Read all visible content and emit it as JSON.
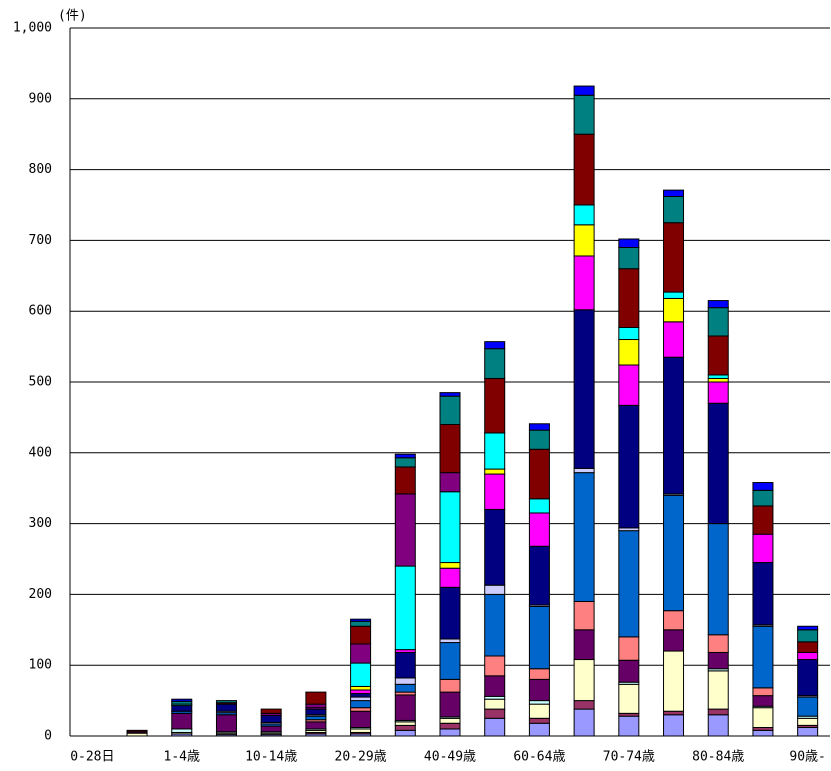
{
  "chart_data": {
    "type": "stacked_bar",
    "y_unit": "(件)",
    "categories": [
      "0-28日",
      null,
      "1-4歳",
      null,
      "10-14歳",
      null,
      "20-29歳",
      null,
      "40-49歳",
      null,
      "60-64歳",
      null,
      "70-74歳",
      null,
      "80-84歳",
      null,
      "90歳-"
    ],
    "ylim": [
      0,
      1000
    ],
    "yticks": [
      0,
      100,
      200,
      300,
      400,
      500,
      600,
      700,
      800,
      900,
      {
        "value": 1000,
        "label": "1,000"
      }
    ],
    "grid": true,
    "series": [
      {
        "color": "#9999ff",
        "values": [
          0,
          0,
          3,
          2,
          2,
          3,
          3,
          8,
          10,
          25,
          18,
          38,
          28,
          30,
          30,
          8,
          12
        ]
      },
      {
        "color": "#993366",
        "values": [
          0,
          0,
          0,
          0,
          0,
          2,
          2,
          7,
          8,
          13,
          7,
          12,
          4,
          5,
          8,
          4,
          3
        ]
      },
      {
        "color": "#ffffcc",
        "values": [
          0,
          4,
          2,
          2,
          2,
          3,
          5,
          5,
          7,
          14,
          20,
          58,
          41,
          85,
          54,
          28,
          10
        ]
      },
      {
        "color": "#ccffff",
        "values": [
          0,
          0,
          5,
          2,
          2,
          2,
          2,
          2,
          2,
          4,
          5,
          0,
          3,
          0,
          3,
          2,
          3
        ]
      },
      {
        "color": "#660066",
        "values": [
          0,
          2,
          22,
          24,
          8,
          10,
          23,
          36,
          35,
          29,
          30,
          42,
          31,
          30,
          23,
          15,
          0
        ]
      },
      {
        "color": "#ff8080",
        "values": [
          0,
          0,
          0,
          0,
          0,
          3,
          5,
          4,
          18,
          28,
          15,
          40,
          33,
          27,
          25,
          11,
          0
        ]
      },
      {
        "color": "#0066cc",
        "values": [
          0,
          0,
          3,
          3,
          3,
          5,
          10,
          11,
          52,
          87,
          88,
          182,
          150,
          163,
          157,
          87,
          27
        ]
      },
      {
        "color": "#ccccff",
        "values": [
          0,
          0,
          0,
          2,
          2,
          2,
          5,
          9,
          5,
          13,
          2,
          6,
          4,
          2,
          0,
          2,
          2
        ]
      },
      {
        "color": "#000080",
        "values": [
          0,
          0,
          8,
          10,
          10,
          8,
          5,
          36,
          73,
          107,
          83,
          224,
          173,
          193,
          170,
          88,
          51
        ]
      },
      {
        "color": "#ff00ff",
        "values": [
          0,
          0,
          0,
          0,
          0,
          2,
          5,
          4,
          27,
          50,
          47,
          76,
          57,
          50,
          30,
          40,
          10
        ]
      },
      {
        "color": "#ffff00",
        "values": [
          0,
          0,
          0,
          0,
          0,
          0,
          5,
          0,
          8,
          7,
          0,
          44,
          36,
          33,
          5,
          0,
          0
        ]
      },
      {
        "color": "#00ffff",
        "values": [
          0,
          0,
          2,
          0,
          0,
          0,
          33,
          118,
          100,
          51,
          20,
          28,
          17,
          9,
          5,
          0,
          0
        ]
      },
      {
        "color": "#800080",
        "values": [
          0,
          0,
          0,
          0,
          3,
          5,
          27,
          102,
          27,
          0,
          0,
          0,
          0,
          0,
          0,
          0,
          0
        ]
      },
      {
        "color": "#800000",
        "values": [
          0,
          2,
          0,
          2,
          6,
          17,
          25,
          38,
          68,
          77,
          70,
          100,
          83,
          98,
          55,
          40,
          15
        ]
      },
      {
        "color": "#008080",
        "values": [
          0,
          0,
          4,
          3,
          0,
          0,
          7,
          13,
          40,
          42,
          27,
          55,
          30,
          37,
          40,
          22,
          17
        ]
      },
      {
        "color": "#0000ff",
        "values": [
          0,
          0,
          3,
          0,
          0,
          0,
          3,
          5,
          5,
          10,
          9,
          13,
          12,
          9,
          10,
          11,
          5
        ]
      }
    ]
  }
}
